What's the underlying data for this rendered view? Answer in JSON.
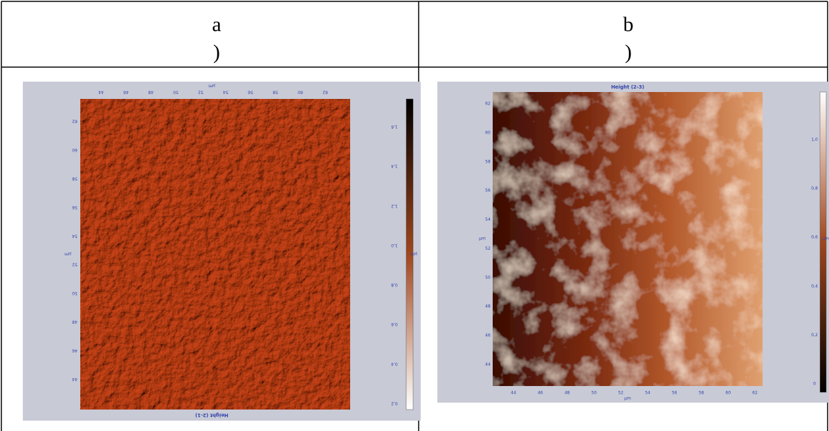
{
  "panels": [
    {
      "label": "a",
      "label_paren": ")",
      "image": {
        "title": "Height (2-1)",
        "x_unit": "µm",
        "y_unit": "µm",
        "colorbar_unit": "µm",
        "x_ticks": [
          "44",
          "46",
          "48",
          "50",
          "52",
          "54",
          "56",
          "58",
          "60",
          "62"
        ],
        "y_ticks": [
          "44",
          "46",
          "48",
          "50",
          "52",
          "54",
          "56",
          "58",
          "60",
          "62"
        ],
        "colorbar_ticks": [
          "0,2",
          "0,4",
          "0,6",
          "0,8",
          "1,0",
          "1,2",
          "1,4",
          "1,6"
        ]
      }
    },
    {
      "label": "b",
      "label_paren": ")",
      "image": {
        "title": "Height (2-3)",
        "x_unit": "µm",
        "y_unit": "µm",
        "colorbar_unit": "µm",
        "x_ticks": [
          "44",
          "46",
          "48",
          "50",
          "52",
          "54",
          "56",
          "58",
          "60",
          "62"
        ],
        "y_ticks": [
          "44",
          "46",
          "48",
          "50",
          "52",
          "54",
          "56",
          "58",
          "60",
          "62"
        ],
        "colorbar_ticks": [
          "0",
          "0,2",
          "0,4",
          "0,6",
          "0,8",
          "1,0"
        ]
      }
    }
  ]
}
